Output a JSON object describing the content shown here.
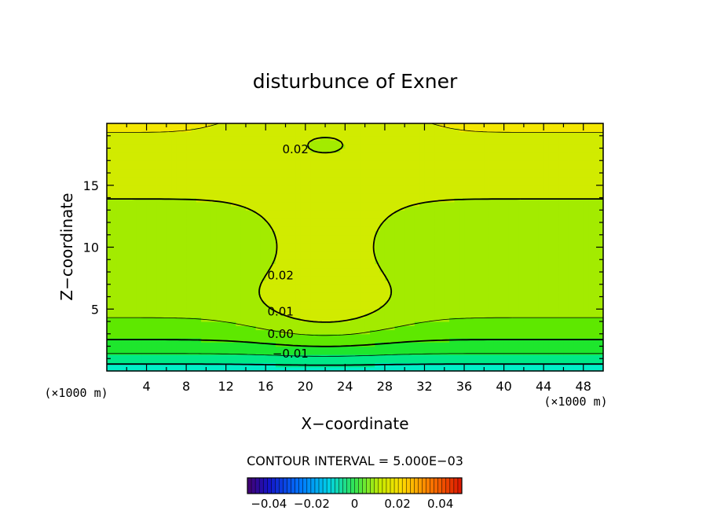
{
  "chart_data": {
    "type": "contour",
    "title": "disturbunce of Exner",
    "xlabel": "X−coordinate",
    "ylabel": "Z−coordinate",
    "x_unit_label": "(×1000 m)",
    "y_unit_label": "(×1000 m)",
    "xlim": [
      0,
      50
    ],
    "ylim": [
      0,
      20
    ],
    "x_ticks": [
      4,
      8,
      12,
      16,
      20,
      24,
      28,
      32,
      36,
      40,
      44,
      48
    ],
    "y_ticks": [
      5,
      10,
      15
    ],
    "contour_interval_label": "CONTOUR INTERVAL = 5.000E−03",
    "contour_interval": 0.005,
    "field_range": [
      -0.015,
      0.035
    ],
    "contour_labels": [
      {
        "text": "0.02",
        "x": 19,
        "z": 17.9
      },
      {
        "text": "0.02",
        "x": 17.5,
        "z": 7.7
      },
      {
        "text": "0.01",
        "x": 17.5,
        "z": 4.8
      },
      {
        "text": "0.00",
        "x": 17.5,
        "z": 3.0
      },
      {
        "text": "−0.01",
        "x": 18.5,
        "z": 1.4
      }
    ],
    "colorbar": {
      "range": [
        -0.05,
        0.05
      ],
      "tick_values": [
        -0.04,
        -0.02,
        0,
        0.02,
        0.04
      ],
      "tick_labels": [
        "−0.04",
        "−0.02",
        "0",
        "0.02",
        "0.04"
      ]
    },
    "colors": {
      "background": "#ffffff",
      "axis": "#000000"
    }
  }
}
